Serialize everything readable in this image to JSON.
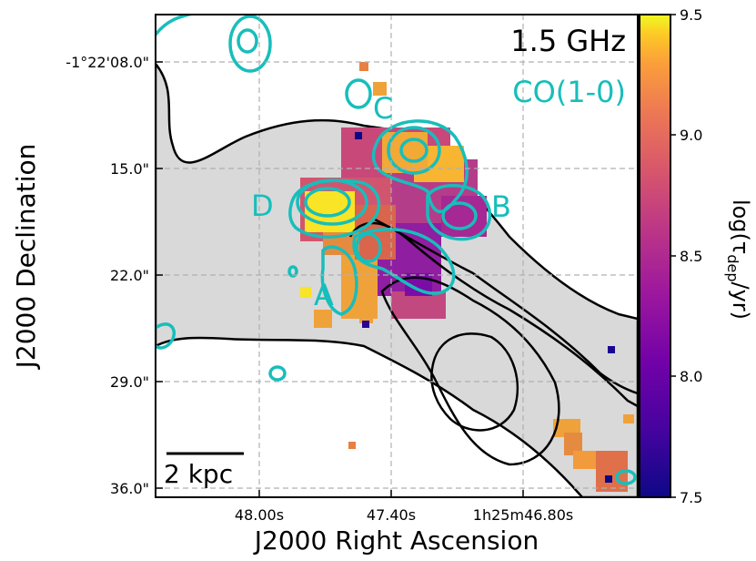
{
  "chart_data": {
    "type": "heatmap",
    "title": "",
    "band_label": "1.5 GHz",
    "overlay_label": "CO(1-0)",
    "xlabel": "J2000 Right Ascension",
    "ylabel": "J2000 Declination",
    "x_ticks": [
      "48.00s",
      "47.40s",
      "1h25m46.80s"
    ],
    "y_ticks": [
      "-1°22'08.0\"",
      "15.0\"",
      "22.0\"",
      "29.0\"",
      "36.0\""
    ],
    "colorbar": {
      "label": "log(τ_dep/yr)",
      "label_main": "log(τ",
      "label_sub": "dep",
      "label_tail": "/yr)",
      "colormap": "plasma",
      "range": [
        7.5,
        9.5
      ],
      "ticks": [
        "7.5",
        "8.0",
        "8.5",
        "9.0",
        "9.5"
      ]
    },
    "regions": [
      {
        "name": "A"
      },
      {
        "name": "B"
      },
      {
        "name": "C"
      },
      {
        "name": "D"
      }
    ],
    "scale_bar": "2 kpc",
    "grid": true,
    "colors": {
      "co_contour": "#17bebb",
      "radio_contour": "#000000",
      "radio_fill": "#d9d9d9"
    }
  }
}
